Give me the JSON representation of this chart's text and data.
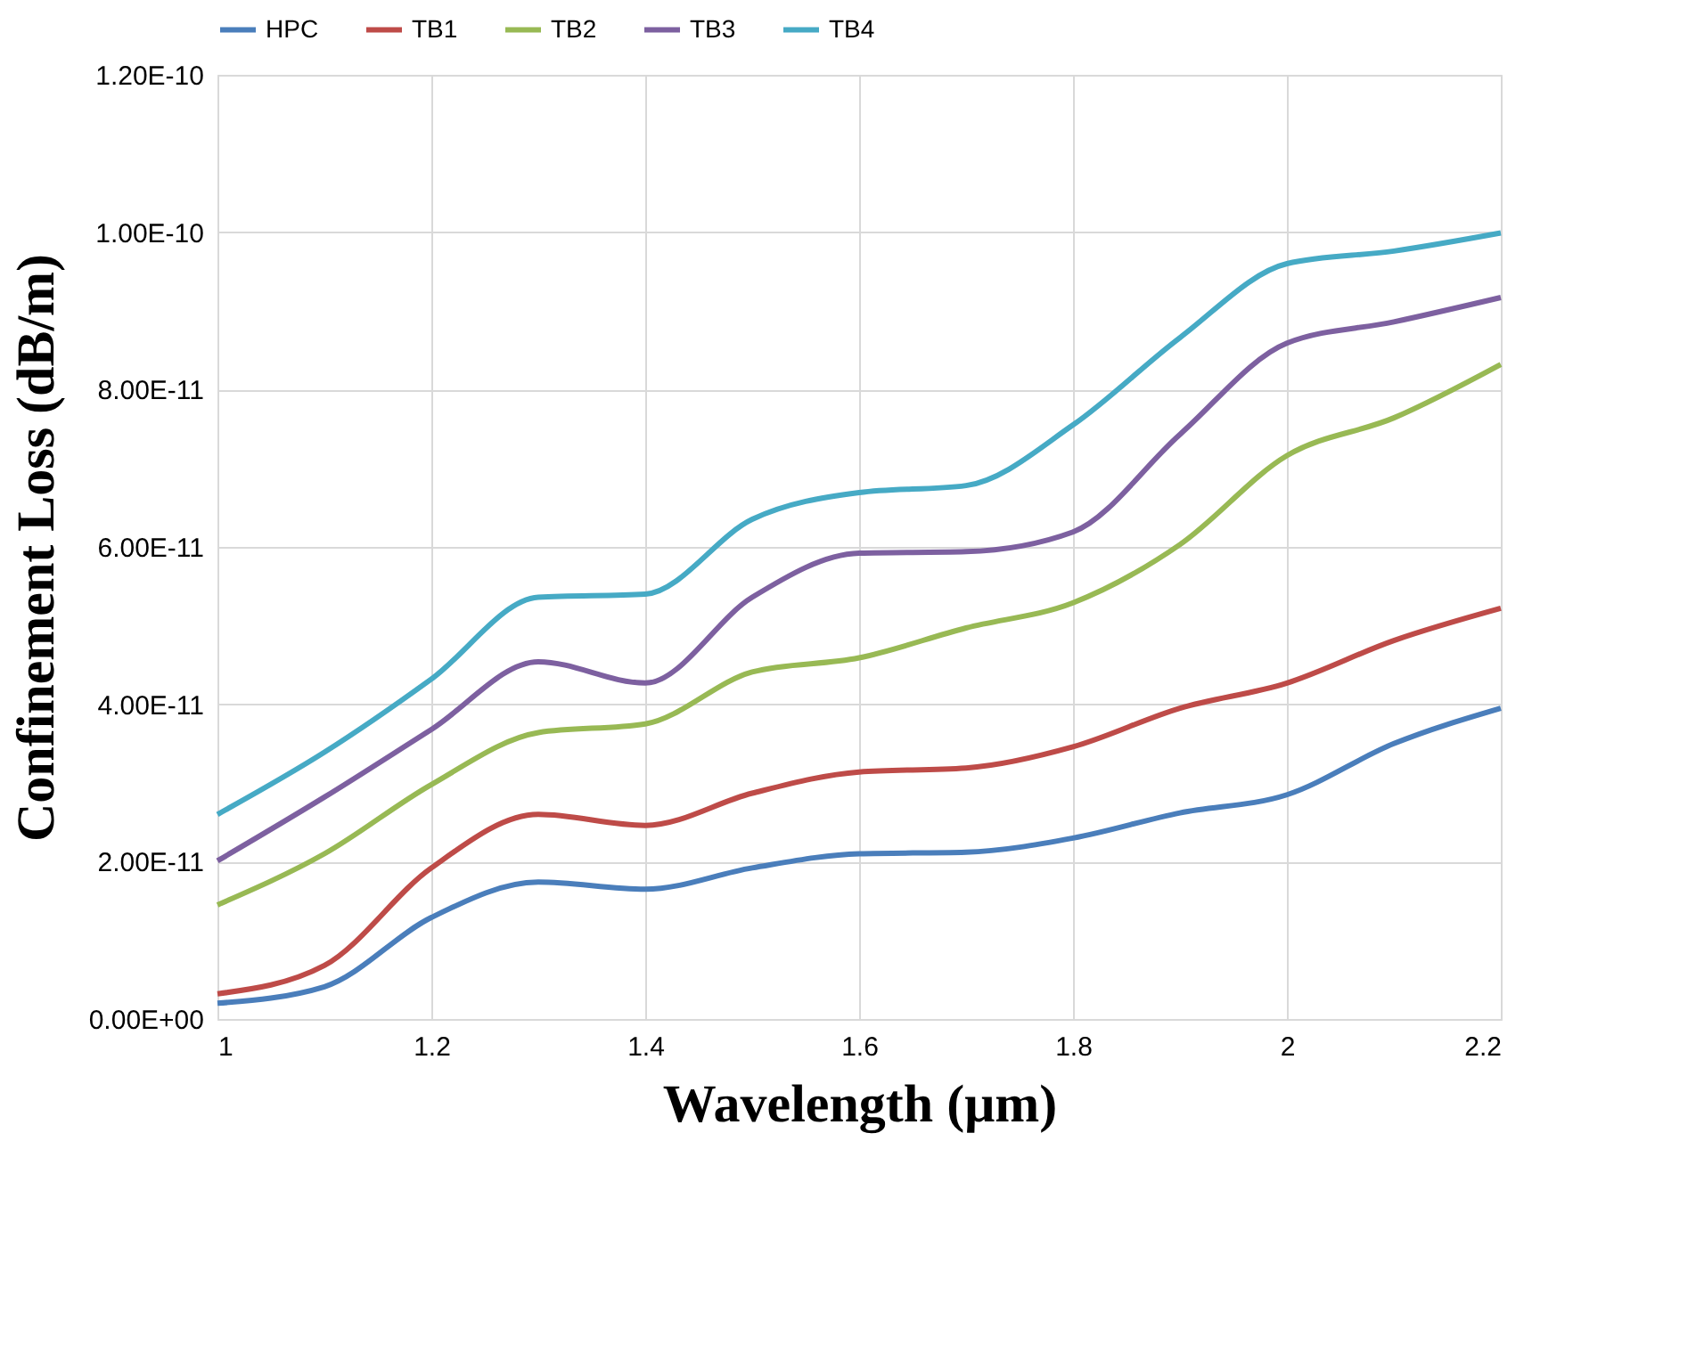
{
  "chart_data": {
    "type": "line",
    "xlabel": "Wavelength (μm)",
    "ylabel": "Confinement Loss (dB/m)",
    "x": [
      1.0,
      1.1,
      1.2,
      1.3,
      1.4,
      1.5,
      1.6,
      1.7,
      1.8,
      1.9,
      2.0,
      2.1,
      2.2
    ],
    "series": [
      {
        "name": "HPC",
        "color": "#4a7ebb",
        "values": [
          2e-12,
          4.1e-12,
          1.29e-11,
          1.74e-11,
          1.65e-11,
          1.92e-11,
          2.1e-11,
          2.12e-11,
          2.3e-11,
          2.62e-11,
          2.85e-11,
          3.5e-11,
          3.95e-11
        ]
      },
      {
        "name": "TB1",
        "color": "#be4b48",
        "values": [
          3.2e-12,
          6.8e-12,
          1.92e-11,
          2.6e-11,
          2.46e-11,
          2.87e-11,
          3.14e-11,
          3.19e-11,
          3.46e-11,
          3.95e-11,
          4.27e-11,
          4.81e-11,
          5.22e-11
        ]
      },
      {
        "name": "TB2",
        "color": "#98b954",
        "values": [
          1.45e-11,
          2.1e-11,
          2.98e-11,
          3.64e-11,
          3.75e-11,
          4.41e-11,
          4.59e-11,
          4.97e-11,
          5.29e-11,
          6.03e-11,
          7.16e-11,
          7.64e-11,
          8.32e-11
        ]
      },
      {
        "name": "TB3",
        "color": "#7d60a0",
        "values": [
          2.01e-11,
          2.82e-11,
          3.68e-11,
          4.54e-11,
          4.27e-11,
          5.36e-11,
          5.92e-11,
          5.94e-11,
          6.19e-11,
          7.43e-11,
          8.59e-11,
          8.86e-11,
          9.17e-11
        ]
      },
      {
        "name": "TB4",
        "color": "#46aac5",
        "values": [
          2.6e-11,
          3.39e-11,
          4.32e-11,
          5.36e-11,
          5.4e-11,
          6.35e-11,
          6.69e-11,
          6.78e-11,
          7.55e-11,
          8.66e-11,
          9.6e-11,
          9.76e-11,
          9.99e-11
        ]
      }
    ],
    "xlim": [
      1,
      2.2
    ],
    "xticks": [
      1,
      1.2,
      1.4,
      1.6,
      1.8,
      2,
      2.2
    ],
    "ylim": [
      0,
      1.2e-10
    ],
    "yticks": [
      {
        "value": 0,
        "label": "0.00E+00"
      },
      {
        "value": 2e-11,
        "label": "2.00E-11"
      },
      {
        "value": 4e-11,
        "label": "4.00E-11"
      },
      {
        "value": 6e-11,
        "label": "6.00E-11"
      },
      {
        "value": 8e-11,
        "label": "8.00E-11"
      },
      {
        "value": 1e-10,
        "label": "1.00E-10"
      },
      {
        "value": 1.2e-10,
        "label": "1.20E-10"
      }
    ],
    "grid": true,
    "legend": "top",
    "marker": "none",
    "line_style": "solid"
  }
}
